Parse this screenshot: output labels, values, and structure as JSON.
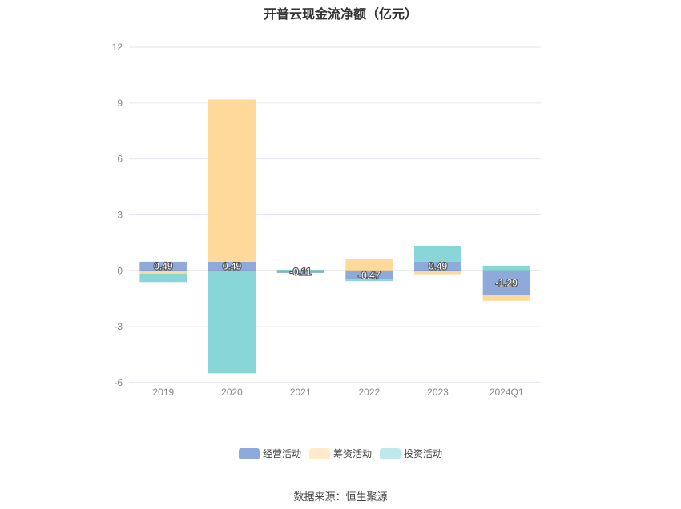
{
  "chart_data": {
    "type": "bar",
    "stacked": true,
    "title": "开普云现金流净额（亿元）",
    "xlabel": "",
    "ylabel": "",
    "ylim": [
      -6,
      12
    ],
    "yticks": [
      12,
      9,
      6,
      3,
      0,
      -3,
      -6
    ],
    "grid": true,
    "legend_position": "bottom",
    "categories": [
      "2019",
      "2020",
      "2021",
      "2022",
      "2023",
      "2024Q1"
    ],
    "series": [
      {
        "name": "经营活动",
        "color": "#8eaadb",
        "values": [
          0.49,
          0.49,
          -0.11,
          -0.47,
          0.49,
          -1.29
        ]
      },
      {
        "name": "筹资活动",
        "color": "#ffd89c",
        "values": [
          -0.15,
          8.7,
          0.0,
          0.63,
          -0.18,
          -0.32
        ]
      },
      {
        "name": "投资活动",
        "color": "#88d6d8",
        "values": [
          -0.45,
          -5.5,
          0.06,
          -0.08,
          0.82,
          0.28
        ]
      }
    ],
    "data_labels": [
      "0.49",
      "0.49",
      "-0.11",
      "-0.47",
      "0.49",
      "-1.29"
    ]
  },
  "source": "数据来源：恒生聚源"
}
